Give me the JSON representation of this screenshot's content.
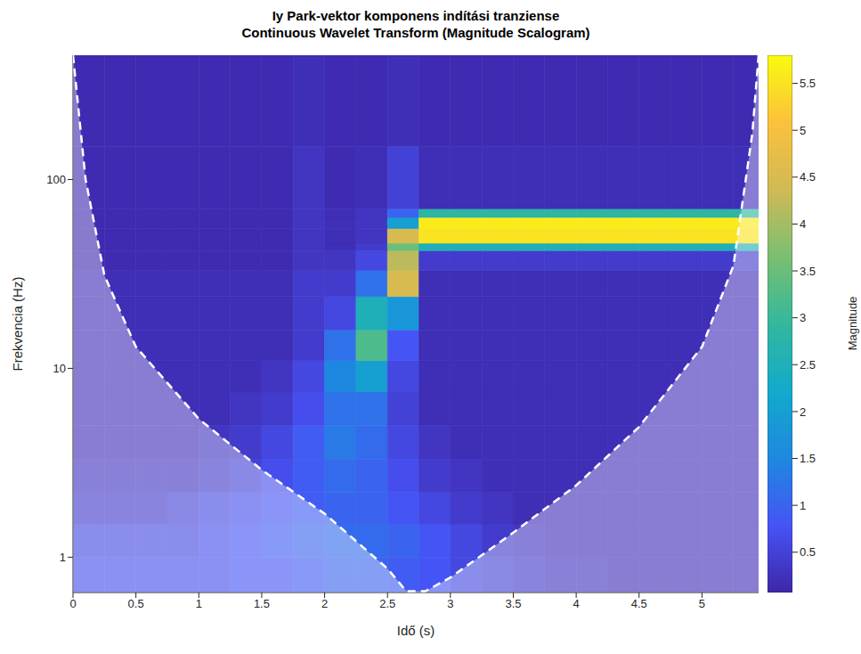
{
  "chart_data": {
    "type": "heatmap",
    "title": "Iy Park-vektor komponens indítási tranziense",
    "subtitle": "Continuous Wavelet Transform (Magnitude Scalogram)",
    "x_label": "Idő (s)",
    "y_label": "Frekvencia (Hz)",
    "xlim": [
      0,
      5.45
    ],
    "xticks": [
      0,
      0.5,
      1,
      1.5,
      2,
      2.5,
      3,
      3.5,
      4,
      4.5,
      5
    ],
    "ylim": [
      0.65,
      455
    ],
    "yticks": [
      1,
      10,
      100
    ],
    "log": "y",
    "grid": false,
    "x_edges": [
      0,
      0.25,
      0.5,
      0.75,
      1,
      1.25,
      1.5,
      1.75,
      2,
      2.25,
      2.5,
      2.75,
      3,
      3.25,
      3.5,
      3.75,
      4,
      4.25,
      4.5,
      4.75,
      5,
      5.25,
      5.5
    ],
    "y_edges": [
      0.65,
      1,
      1.5,
      2.2,
      3.3,
      5,
      7.5,
      11,
      16,
      24,
      33,
      42,
      46,
      55,
      63,
      70,
      150,
      455
    ],
    "cells": [
      [
        0.7,
        0.7,
        0.7,
        0.7,
        0.7,
        0.8,
        0.8,
        0.9,
        1.0,
        1.0,
        0.9,
        0.8,
        0.6,
        0.5,
        0.4,
        0.3,
        0.3,
        0.2,
        0.2,
        0.2,
        0.2,
        0.2
      ],
      [
        0.6,
        0.6,
        0.6,
        0.6,
        0.7,
        0.8,
        0.9,
        1.0,
        1.1,
        1.1,
        1.0,
        0.8,
        0.6,
        0.4,
        0.3,
        0.2,
        0.2,
        0.2,
        0.2,
        0.2,
        0.2,
        0.2
      ],
      [
        0.4,
        0.4,
        0.4,
        0.5,
        0.6,
        0.7,
        0.8,
        0.9,
        1.0,
        1.0,
        0.8,
        0.6,
        0.4,
        0.3,
        0.2,
        0.2,
        0.2,
        0.2,
        0.2,
        0.2,
        0.2,
        0.2
      ],
      [
        0.3,
        0.3,
        0.3,
        0.3,
        0.4,
        0.5,
        0.7,
        0.9,
        1.1,
        1.0,
        0.7,
        0.4,
        0.3,
        0.2,
        0.2,
        0.2,
        0.2,
        0.2,
        0.2,
        0.2,
        0.2,
        0.2
      ],
      [
        0.2,
        0.2,
        0.2,
        0.2,
        0.3,
        0.4,
        0.6,
        0.9,
        1.3,
        1.1,
        0.6,
        0.3,
        0.2,
        0.2,
        0.2,
        0.2,
        0.2,
        0.2,
        0.2,
        0.2,
        0.2,
        0.2
      ],
      [
        0.2,
        0.2,
        0.2,
        0.2,
        0.2,
        0.3,
        0.4,
        0.7,
        1.2,
        1.2,
        0.5,
        0.2,
        0.2,
        0.2,
        0.2,
        0.2,
        0.2,
        0.2,
        0.2,
        0.2,
        0.2,
        0.2
      ],
      [
        0.2,
        0.2,
        0.2,
        0.2,
        0.2,
        0.2,
        0.3,
        0.6,
        1.5,
        2.0,
        0.6,
        0.2,
        0.2,
        0.2,
        0.2,
        0.2,
        0.2,
        0.2,
        0.2,
        0.2,
        0.2,
        0.2
      ],
      [
        0.2,
        0.2,
        0.2,
        0.2,
        0.2,
        0.2,
        0.2,
        0.4,
        1.2,
        3.2,
        0.8,
        0.2,
        0.2,
        0.2,
        0.2,
        0.2,
        0.2,
        0.2,
        0.2,
        0.2,
        0.2,
        0.2
      ],
      [
        0.2,
        0.2,
        0.2,
        0.2,
        0.2,
        0.2,
        0.2,
        0.4,
        0.6,
        2.5,
        1.8,
        0.2,
        0.2,
        0.2,
        0.2,
        0.2,
        0.2,
        0.2,
        0.2,
        0.2,
        0.2,
        0.2
      ],
      [
        0.2,
        0.2,
        0.2,
        0.2,
        0.2,
        0.2,
        0.2,
        0.4,
        0.4,
        1.2,
        4.5,
        0.2,
        0.2,
        0.2,
        0.2,
        0.2,
        0.2,
        0.2,
        0.2,
        0.2,
        0.2,
        0.2
      ],
      [
        0.15,
        0.15,
        0.15,
        0.15,
        0.15,
        0.15,
        0.15,
        0.3,
        0.3,
        0.6,
        4.2,
        0.4,
        0.4,
        0.4,
        0.4,
        0.4,
        0.4,
        0.4,
        0.4,
        0.4,
        0.4,
        0.4
      ],
      [
        0.15,
        0.15,
        0.15,
        0.15,
        0.15,
        0.15,
        0.15,
        0.3,
        0.2,
        0.4,
        3.5,
        2.5,
        2.5,
        2.5,
        2.5,
        2.5,
        2.5,
        2.5,
        2.5,
        2.5,
        2.5,
        2.5
      ],
      [
        0.15,
        0.15,
        0.15,
        0.15,
        0.15,
        0.15,
        0.15,
        0.3,
        0.2,
        0.3,
        4.5,
        5.5,
        5.5,
        5.5,
        5.5,
        5.5,
        5.5,
        5.5,
        5.5,
        5.5,
        5.5,
        5.5
      ],
      [
        0.15,
        0.15,
        0.15,
        0.15,
        0.15,
        0.15,
        0.15,
        0.3,
        0.2,
        0.3,
        2.0,
        5.6,
        5.6,
        5.6,
        5.6,
        5.6,
        5.6,
        5.6,
        5.6,
        5.6,
        5.6,
        5.6
      ],
      [
        0.15,
        0.15,
        0.15,
        0.15,
        0.15,
        0.15,
        0.15,
        0.3,
        0.2,
        0.3,
        1.0,
        2.8,
        2.8,
        2.8,
        2.8,
        2.8,
        2.8,
        2.8,
        2.8,
        2.8,
        2.8,
        2.8
      ],
      [
        0.15,
        0.15,
        0.15,
        0.15,
        0.15,
        0.15,
        0.15,
        0.3,
        0.15,
        0.2,
        0.5,
        0.2,
        0.2,
        0.2,
        0.2,
        0.2,
        0.2,
        0.2,
        0.2,
        0.2,
        0.2,
        0.2
      ],
      [
        0.15,
        0.15,
        0.15,
        0.15,
        0.15,
        0.15,
        0.15,
        0.2,
        0.15,
        0.15,
        0.2,
        0.15,
        0.15,
        0.15,
        0.15,
        0.15,
        0.15,
        0.15,
        0.15,
        0.15,
        0.15,
        0.15
      ]
    ],
    "colorbar": {
      "label": "Magnitude",
      "range": [
        0.07,
        5.8
      ],
      "ticks": [
        0.5,
        1,
        1.5,
        2,
        2.5,
        3,
        3.5,
        4,
        4.5,
        5,
        5.5
      ]
    },
    "cone_of_influence": {
      "x": [
        0,
        0.1,
        0.25,
        0.5,
        1,
        1.5,
        2,
        2.5,
        2.65,
        2.8,
        3,
        3.5,
        4,
        4.5,
        5,
        5.25,
        5.4,
        5.45
      ],
      "values": [
        455,
        100,
        31,
        13,
        5.4,
        2.9,
        1.7,
        0.87,
        0.66,
        0.66,
        0.78,
        1.35,
        2.4,
        4.9,
        13,
        35,
        175,
        455
      ],
      "color": "#ffffff",
      "line_style": "dashed"
    }
  }
}
